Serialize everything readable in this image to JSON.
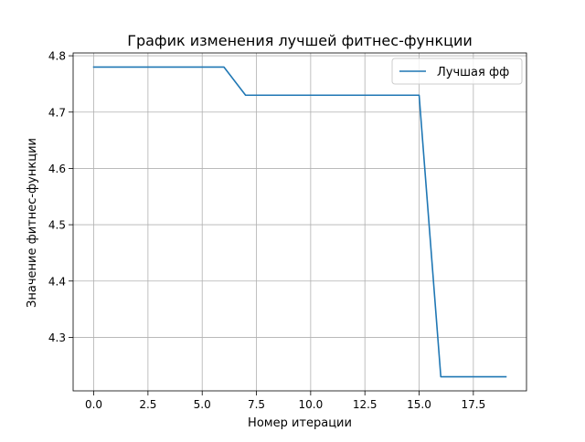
{
  "chart_data": {
    "type": "line",
    "title": "График изменения лучшей фитнес-функции",
    "xlabel": "Номер итерации",
    "ylabel": "Значение фитнес-функции",
    "x": [
      0,
      1,
      2,
      3,
      4,
      5,
      6,
      7,
      8,
      9,
      10,
      11,
      12,
      13,
      14,
      15,
      16,
      17,
      18,
      19
    ],
    "series": [
      {
        "name": "Лучшая фф",
        "color": "#1f77b4",
        "values": [
          4.78,
          4.78,
          4.78,
          4.78,
          4.78,
          4.78,
          4.78,
          4.73,
          4.73,
          4.73,
          4.73,
          4.73,
          4.73,
          4.73,
          4.73,
          4.73,
          4.23,
          4.23,
          4.23,
          4.23
        ]
      }
    ],
    "xlim": [
      -0.95,
      19.95
    ],
    "ylim": [
      4.205,
      4.805
    ],
    "xticks": [
      0.0,
      2.5,
      5.0,
      7.5,
      10.0,
      12.5,
      15.0,
      17.5
    ],
    "xtick_labels": [
      "0.0",
      "2.5",
      "5.0",
      "7.5",
      "10.0",
      "12.5",
      "15.0",
      "17.5"
    ],
    "yticks": [
      4.3,
      4.4,
      4.5,
      4.6,
      4.7,
      4.8
    ],
    "ytick_labels": [
      "4.3",
      "4.4",
      "4.5",
      "4.6",
      "4.7",
      "4.8"
    ],
    "grid": true,
    "legend_position": "upper right"
  }
}
